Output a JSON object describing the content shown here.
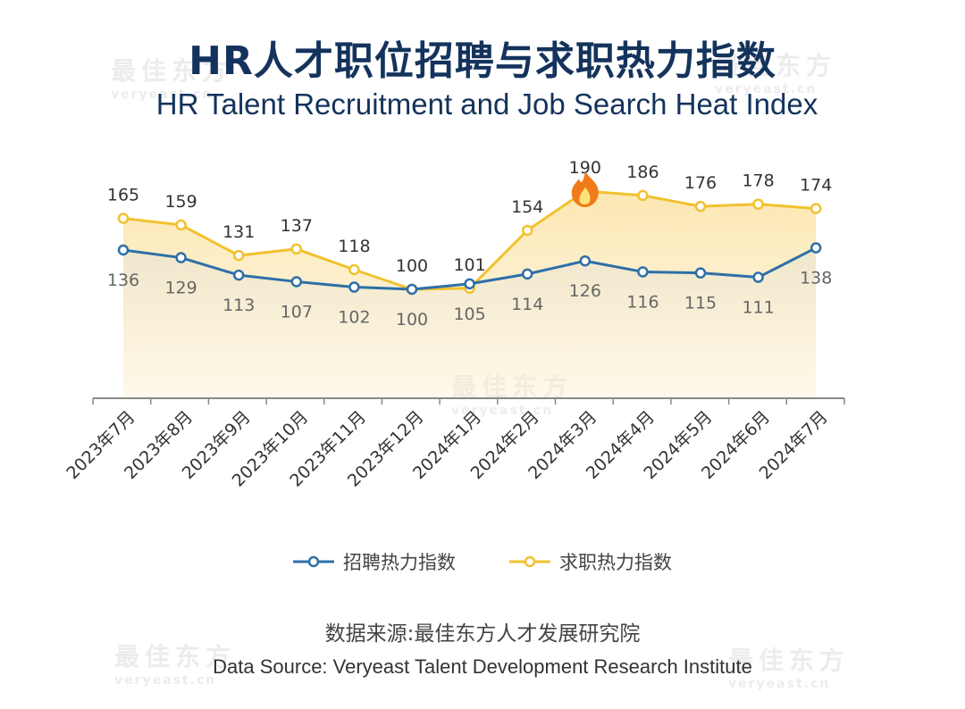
{
  "title": "HR人才职位招聘与求职热力指数",
  "subtitle": "HR Talent Recruitment and Job Search Heat Index",
  "source_zh": "数据来源:最佳东方人才发展研究院",
  "source_en": "Data Source: Veryeast Talent Development Research Institute",
  "watermark": {
    "brand": "最佳东方",
    "domain": "veryeast.cn"
  },
  "colors": {
    "recruit": "#2e6fa7",
    "jobsearch": "#f2c12e",
    "fill": "#fbe3a4",
    "axis": "#888888"
  },
  "chart_data": {
    "type": "line",
    "categories": [
      "2023年7月",
      "2023年8月",
      "2023年9月",
      "2023年10月",
      "2023年11月",
      "2023年12月",
      "2024年1月",
      "2024年2月",
      "2024年3月",
      "2024年4月",
      "2024年5月",
      "2024年6月",
      "2024年7月"
    ],
    "series": [
      {
        "name": "招聘热力指数",
        "values": [
          136,
          129,
          113,
          107,
          102,
          100,
          105,
          114,
          126,
          116,
          115,
          111,
          138
        ]
      },
      {
        "name": "求职热力指数",
        "values": [
          165,
          159,
          131,
          137,
          118,
          100,
          101,
          154,
          190,
          186,
          176,
          178,
          174
        ]
      }
    ],
    "legend_position": "bottom",
    "grid": false
  }
}
